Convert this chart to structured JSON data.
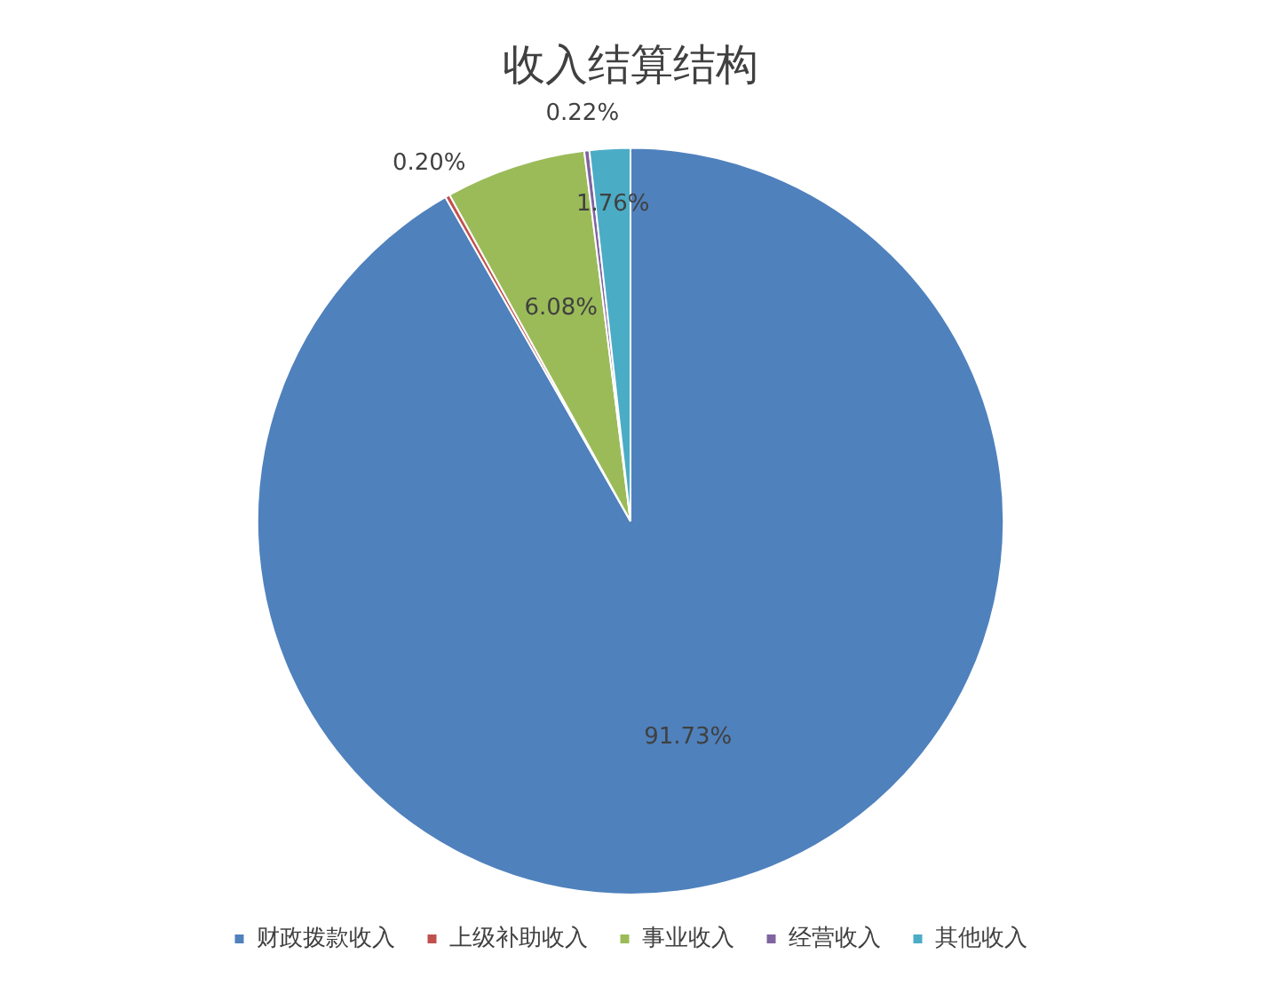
{
  "chart_data": {
    "type": "pie",
    "title": "收入结算结构",
    "categories": [
      "财政拨款收入",
      "上级补助收入",
      "事业收入",
      "经营收入",
      "其他收入"
    ],
    "values": [
      91.73,
      0.2,
      6.08,
      0.22,
      1.76
    ],
    "colors": [
      "#4f81bd",
      "#c0504d",
      "#9bbb59",
      "#8064a2",
      "#4bacc6"
    ],
    "value_labels": [
      "91.73%",
      "0.20%",
      "6.08%",
      "0.22%",
      "1.76%"
    ],
    "legend": "bottom"
  }
}
